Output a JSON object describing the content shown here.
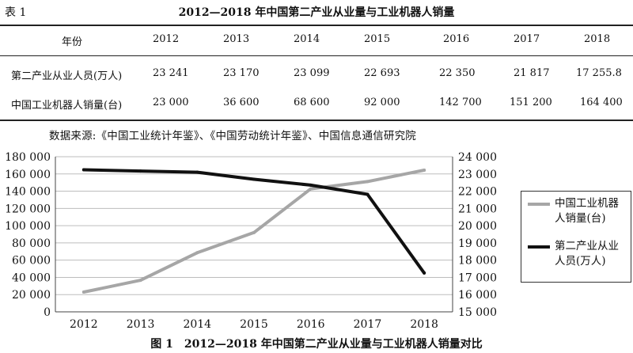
{
  "table": {
    "label": "表 1",
    "title": "2012—2018 年中国第二产业从业量与工业机器人销量",
    "header": [
      "年份",
      "2012",
      "2013",
      "2014",
      "2015",
      "2016",
      "2017",
      "2018"
    ],
    "rows": [
      [
        "第二产业从业人员(万人)",
        "23 241",
        "23 170",
        "23 099",
        "22 693",
        "22 350",
        "21 817",
        "17 255.8"
      ],
      [
        "中国工业机器人销量(台)",
        "23 000",
        "36 600",
        "68 600",
        "92 000",
        "142 700",
        "151 200",
        "164 400"
      ]
    ]
  },
  "source": "数据来源:《中国工业统计年鉴》、《中国劳动统计年鉴》、中国信息通信研究院",
  "figure_caption": "图 1　2012—2018 年中国第二产业从业量与工业机器人销量对比",
  "chart_data": {
    "type": "line",
    "categories": [
      "2012",
      "2013",
      "2014",
      "2015",
      "2016",
      "2017",
      "2018"
    ],
    "series": [
      {
        "name": "中国工业机器人销量(台)",
        "axis": "left",
        "color": "#a6a6a6",
        "values": [
          23000,
          36600,
          68600,
          92000,
          142700,
          151200,
          164400
        ]
      },
      {
        "name": "第二产业从业人员(万人)",
        "axis": "right",
        "color": "#111111",
        "values": [
          23241,
          23170,
          23099,
          22693,
          22350,
          21817,
          17255.8
        ]
      }
    ],
    "left_axis": {
      "min": 0,
      "max": 180000,
      "step": 20000,
      "tick_labels": [
        "0",
        "20 000",
        "40 000",
        "60 000",
        "80 000",
        "100 000",
        "120 000",
        "140 000",
        "160 000",
        "180 000"
      ]
    },
    "right_axis": {
      "min": 15000,
      "max": 24000,
      "step": 1000,
      "tick_labels": [
        "15 000",
        "16 000",
        "17 000",
        "18 000",
        "19 000",
        "20 000",
        "21 000",
        "22 000",
        "23 000",
        "24 000"
      ]
    },
    "grid": true,
    "legend": "right",
    "legend_labels": [
      "中国工业机器人销量(台)",
      "第二产业从业人员(万人)"
    ]
  }
}
